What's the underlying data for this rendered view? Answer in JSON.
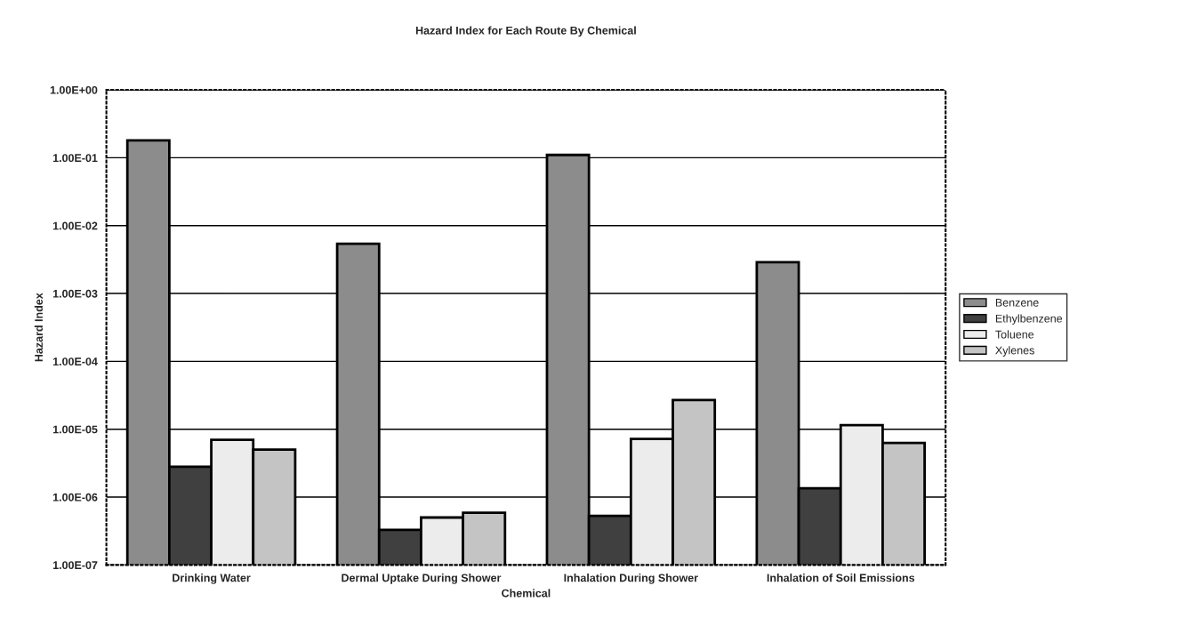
{
  "chart_data": {
    "type": "bar",
    "title": "Hazard Index for Each Route By Chemical",
    "xlabel": "Chemical",
    "ylabel": "Hazard Index",
    "categories": [
      "Drinking Water",
      "Dermal Uptake During Shower",
      "Inhalation During Shower",
      "Inhalation of Soil Emissions"
    ],
    "series": [
      {
        "name": "Benzene",
        "color": "#8c8c8c",
        "values": [
          0.18,
          0.0054,
          0.11,
          0.0029
        ]
      },
      {
        "name": "Ethylbenzene",
        "color": "#404040",
        "values": [
          2.8e-06,
          3.3e-07,
          5.3e-07,
          1.35e-06
        ]
      },
      {
        "name": "Toluene",
        "color": "#ececec",
        "values": [
          7e-06,
          5e-07,
          7.2e-06,
          1.15e-05
        ]
      },
      {
        "name": "Xylenes",
        "color": "#c4c4c4",
        "values": [
          5e-06,
          5.9e-07,
          2.7e-05,
          6.3e-06
        ]
      }
    ],
    "log": "y",
    "ylim": [
      1e-07,
      1
    ],
    "yticks": [
      {
        "value": 1e-07,
        "label": "1.00E-07"
      },
      {
        "value": 1e-06,
        "label": "1.00E-06"
      },
      {
        "value": 1e-05,
        "label": "1.00E-05"
      },
      {
        "value": 0.0001,
        "label": "1.00E-04"
      },
      {
        "value": 0.001,
        "label": "1.00E-03"
      },
      {
        "value": 0.01,
        "label": "1.00E-02"
      },
      {
        "value": 0.1,
        "label": "1.00E-01"
      },
      {
        "value": 1,
        "label": "1.00E+00"
      }
    ],
    "grid": "y",
    "legend": "right"
  }
}
